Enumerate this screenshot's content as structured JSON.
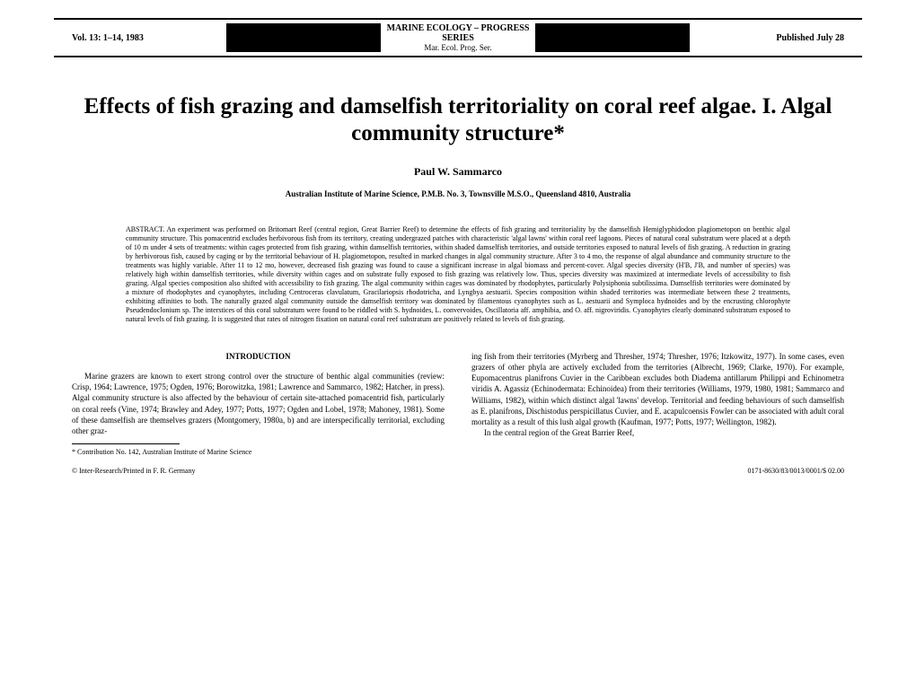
{
  "header": {
    "volume": "Vol. 13: 1–14, 1983",
    "journal_top": "MARINE ECOLOGY – PROGRESS SERIES",
    "journal_bot": "Mar. Ecol. Prog. Ser.",
    "published": "Published July 28"
  },
  "title": "Effects of fish grazing and damselfish territoriality on coral reef algae. I. Algal community structure*",
  "author": "Paul W. Sammarco",
  "affiliation": "Australian Institute of Marine Science, P.M.B. No. 3, Townsville M.S.O., Queensland 4810, Australia",
  "abstract_label": "ABSTRACT.",
  "abstract_body": " An experiment was performed on Britomart Reef (central region, Great Barrier Reef) to determine the effects of fish grazing and territoriality by the damselfish Hemiglyphidodon plagiometopon on benthic algal community structure. This pomacentrid excludes herbivorous fish from its territory, creating undergrazed patches with characteristic 'algal lawns' within coral reef lagoons. Pieces of natural coral substratum were placed at a depth of 10 m under 4 sets of treatments: within cages protected from fish grazing, within damselfish territories, within shaded damselfish territories, and outside territories exposed to natural levels of fish grazing. A reduction in grazing by herbivorous fish, caused by caging or by the territorial behaviour of H. plagiometopon, resulted in marked changes in algal community structure. After 3 to 4 mo, the response of algal abundance and community structure to the treatments was highly variable. After 11 to 12 mo, however, decreased fish grazing was found to cause a significant increase in algal biomass and percent-cover. Algal species diversity (H'B, J'B, and number of species) was relatively high within damselfish territories, while diversity within cages and on substrate fully exposed to fish grazing was relatively low. Thus, species diversity was maximized at intermediate levels of accessibility to fish grazing. Algal species composition also shifted with accessibility to fish grazing. The algal community within cages was dominated by rhodophytes, particularly Polysiphonia subtilissima. Damselfish territories were dominated by a mixture of rhodophytes and cyanophytes, including Centroceras clavulatum, Gracilariopsis rhodotricha, and Lyngbya aestuarii. Species composition within shaded territories was intermediate between these 2 treatments, exhibiting affinities to both. The naturally grazed algal community outside the damselfish territory was dominated by filamentous cyanophytes such as L. aestuarii and Symploca hydnoides and by the encrusting chlorophyte Pseudendoclonium sp. The interstices of this coral substratum were found to be riddled with S. hydnoides, L. convervoides, Oscillatoria aff. amphibia, and O. aff. nigroviridis. Cyanophytes clearly dominated substratum exposed to natural levels of fish grazing. It is suggested that rates of nitrogen fixation on natural coral reef substratum are positively related to levels of fish grazing.",
  "intro_heading": "INTRODUCTION",
  "intro_left": "Marine grazers are known to exert strong control over the structure of benthic algal communities (review: Crisp, 1964; Lawrence, 1975; Ogden, 1976; Borowitzka, 1981; Lawrence and Sammarco, 1982; Hatcher, in press). Algal community structure is also affected by the behaviour of certain site-attached pomacentrid fish, particularly on coral reefs (Vine, 1974; Brawley and Adey, 1977; Potts, 1977; Ogden and Lobel, 1978; Mahoney, 1981). Some of these damselfish are themselves grazers (Montgomery, 1980a, b) and are interspecifically territorial, excluding other graz-",
  "intro_right": "ing fish from their territories (Myrberg and Thresher, 1974; Thresher, 1976; Itzkowitz, 1977). In some cases, even grazers of other phyla are actively excluded from the territories (Albrecht, 1969; Clarke, 1970). For example, Eupomacentrus planifrons Cuvier in the Caribbean excludes both Diadema antillarum Philippi and Echinometra viridis A. Agassiz (Echinodermata: Echinoidea) from their territories (Williams, 1979, 1980, 1981; Sammarco and Williams, 1982), within which distinct algal 'lawns' develop. Territorial and feeding behaviours of such damselfish as E. planifrons, Dischistodus perspicillatus Cuvier, and E. acapulcoensis Fowler can be associated with adult coral mortality as a result of this lush algal growth (Kaufman, 1977; Potts, 1977; Wellington, 1982).",
  "intro_right_cont": "In the central region of the Great Barrier Reef,",
  "footnote": "* Contribution No. 142, Australian Institute of Marine Science",
  "footer_left": "© Inter-Research/Printed in F. R. Germany",
  "footer_right": "0171-8630/83/0013/0001/$ 02.00"
}
